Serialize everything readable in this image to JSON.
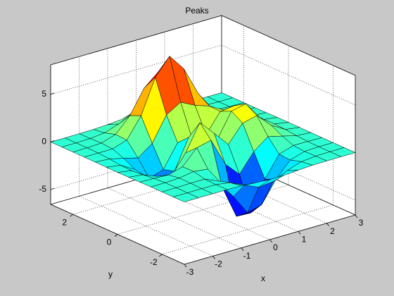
{
  "chart_data": {
    "type": "surface",
    "title": "Peaks",
    "x_label": "x",
    "y_label": "y",
    "x": [
      -3,
      -2.5,
      -2,
      -1.5,
      -1,
      -0.5,
      0,
      0.5,
      1,
      1.5,
      2,
      2.5,
      3
    ],
    "y": [
      -3,
      -2.5,
      -2,
      -1.5,
      -1,
      -0.5,
      0,
      0.5,
      1,
      1.5,
      2,
      2.5,
      3
    ],
    "z": [
      [
        0,
        0,
        0,
        0,
        -0.03,
        -0.14,
        -0.24,
        -0.22,
        -0.11,
        -0.03,
        -0.01,
        0,
        0
      ],
      [
        0,
        0,
        0.01,
        0,
        -0.23,
        -0.91,
        -1.57,
        -1.41,
        -0.69,
        -0.18,
        -0.03,
        0,
        0
      ],
      [
        0,
        0.01,
        0.05,
        0.05,
        -0.59,
        -2.64,
        -4.76,
        -4.35,
        -2.1,
        -0.53,
        -0.06,
        0,
        0
      ],
      [
        0,
        0.01,
        0.08,
        0.33,
        0.15,
        -2.19,
        -5.68,
        -5.76,
        -2.64,
        -0.44,
        0.04,
        0.03,
        0
      ],
      [
        -0.01,
        -0.06,
        -0.13,
        0.3,
        1.86,
        2.22,
        -0.72,
        -2.22,
        -0.27,
        0.88,
        0.5,
        0.11,
        0.01
      ],
      [
        -0.03,
        -0.2,
        -0.8,
        -1.21,
        0.8,
        3.55,
        2,
        0.39,
        2.2,
        2.56,
        1.12,
        0.24,
        0.03
      ],
      [
        -0.04,
        -0.3,
        -1.33,
        -2.77,
        -1.65,
        1.48,
        0.98,
        0.37,
        2.94,
        3.27,
        1.41,
        0.3,
        0.03
      ],
      [
        -0.03,
        -0.25,
        -1.12,
        -2.49,
        -2,
        0.39,
        0.46,
        0.38,
        2.38,
        2.56,
        1.09,
        0.23,
        0.03
      ],
      [
        -0.01,
        -0.11,
        -0.48,
        -0.86,
        0.23,
        2.79,
        3.69,
        2.93,
        2.43,
        1.58,
        0.58,
        0.11,
        0.01
      ],
      [
        0,
        -0.02,
        -0.01,
        0.48,
        2.61,
        6.2,
        8,
        6.25,
        3.25,
        1.19,
        0.29,
        0.05,
        0
      ],
      [
        0,
        0.01,
        0.08,
        0.55,
        2.1,
        4.56,
        5.86,
        4.57,
        2.21,
        0.68,
        0.13,
        0.02,
        0
      ],
      [
        0,
        0,
        0.03,
        0.19,
        0.69,
        1.47,
        1.88,
        1.47,
        0.7,
        0.2,
        0.04,
        0,
        0
      ],
      [
        0,
        0,
        0.01,
        0.03,
        0.11,
        0.23,
        0.3,
        0.23,
        0.11,
        0.03,
        0.01,
        0,
        0
      ]
    ],
    "xlim": [
      -3,
      3
    ],
    "ylim": [
      -3,
      3
    ],
    "zlim": [
      -6.55,
      8.11
    ],
    "xticks": [
      -3,
      -2,
      -1,
      0,
      1,
      2,
      3
    ],
    "yticks": [
      -2,
      0,
      2
    ],
    "zticks": [
      -5,
      0,
      5
    ],
    "colormap": "jet",
    "edge_color": "#000000",
    "grid": true
  }
}
